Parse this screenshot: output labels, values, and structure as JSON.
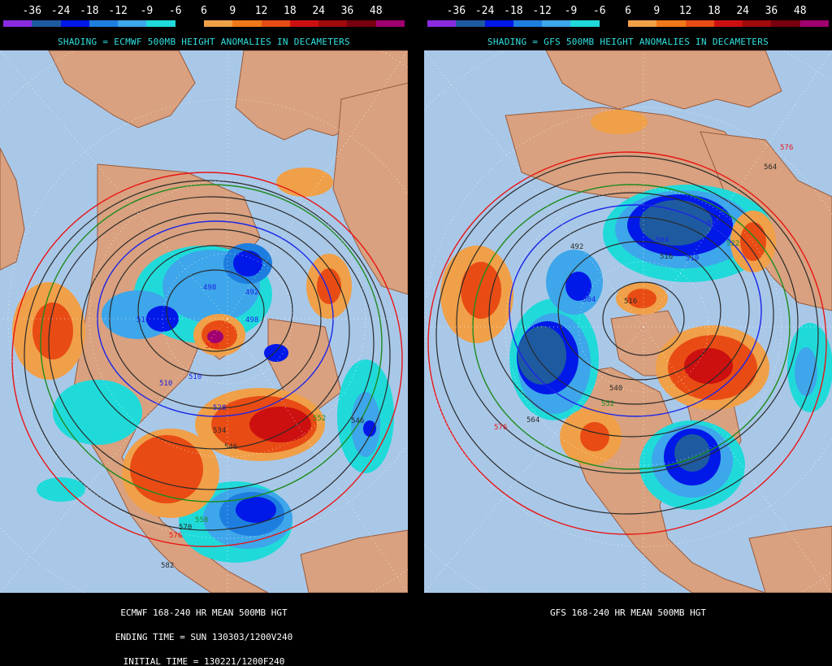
{
  "scale": {
    "labels": [
      "-36",
      "-24",
      "-18",
      "-12",
      "-9",
      "-6",
      "6",
      "9",
      "12",
      "18",
      "24",
      "36",
      "48"
    ],
    "colors": [
      "#8a2be2",
      "#1e5aa0",
      "#0018e8",
      "#1e7ee0",
      "#3ea6ea",
      "#20dada",
      "#000000",
      "#f0a048",
      "#f07818",
      "#e84c14",
      "#cc1010",
      "#a00a0a",
      "#780010",
      "#a00070"
    ]
  },
  "panels": [
    {
      "model": "ECMWF",
      "shading_title": "SHADING = ECMWF 500MB HEIGHT ANOMALIES IN DECAMETERS",
      "caption_lines": [
        "ECMWF 168-240 HR MEAN 500MB HGT",
        "ENDING TIME = SUN 130303/1200V240",
        "INITIAL TIME = 130221/1200F240"
      ],
      "contour_labels": [
        "528",
        "498",
        "492",
        "516",
        "498",
        "510",
        "528",
        "534",
        "546",
        "552",
        "546",
        "558",
        "570",
        "576",
        "582",
        "510"
      ],
      "anomalies": [
        {
          "sign": "negative",
          "level": 18,
          "region": "eastern North America"
        },
        {
          "sign": "negative",
          "level": 18,
          "region": "Hudson Bay"
        },
        {
          "sign": "negative",
          "level": 12,
          "region": "Arctic"
        },
        {
          "sign": "positive",
          "level": 18,
          "region": "Greenland"
        },
        {
          "sign": "positive",
          "level": 24,
          "region": "North Atlantic"
        },
        {
          "sign": "positive",
          "level": 18,
          "region": "western North America"
        },
        {
          "sign": "positive",
          "level": 12,
          "region": "northern Europe"
        },
        {
          "sign": "positive",
          "level": 12,
          "region": "central Asia"
        },
        {
          "sign": "negative",
          "level": 12,
          "region": "Pacific"
        }
      ]
    },
    {
      "model": "GFS",
      "shading_title": "SHADING = GFS 500MB HEIGHT ANOMALIES IN DECAMETERS",
      "caption_lines": [
        "GFS 168-240 HR MEAN 500MB HGT"
      ],
      "contour_labels": [
        "576",
        "564",
        "528",
        "522",
        "492",
        "504",
        "516",
        "504",
        "540",
        "552",
        "564",
        "576",
        "516",
        "510"
      ],
      "anomalies": [
        {
          "sign": "negative",
          "level": 24,
          "region": "eastern North America"
        },
        {
          "sign": "negative",
          "level": 24,
          "region": "Europe"
        },
        {
          "sign": "negative",
          "level": 24,
          "region": "North Pacific"
        },
        {
          "sign": "positive",
          "level": 24,
          "region": "Greenland"
        },
        {
          "sign": "positive",
          "level": 18,
          "region": "central Asia"
        },
        {
          "sign": "positive",
          "level": 18,
          "region": "western North America"
        },
        {
          "sign": "negative",
          "level": 12,
          "region": "North Atlantic"
        },
        {
          "sign": "positive",
          "level": 12,
          "region": "Arctic"
        }
      ]
    }
  ]
}
